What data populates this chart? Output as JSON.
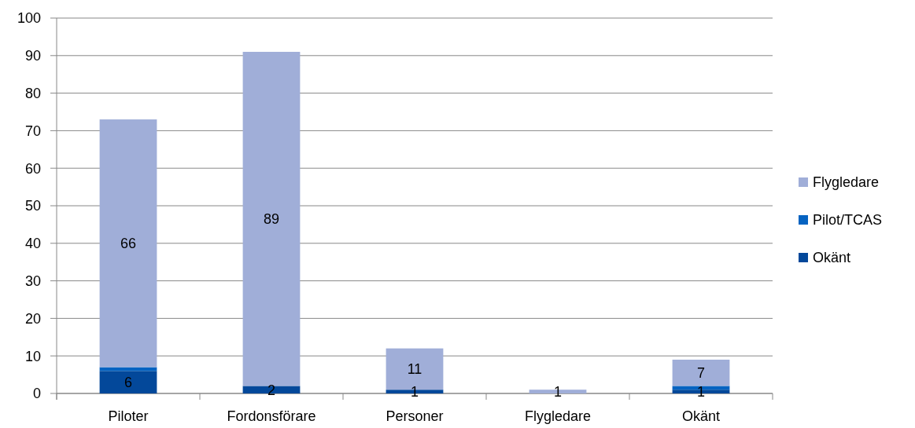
{
  "chart_data": {
    "type": "bar",
    "stacked": true,
    "categories": [
      "Piloter",
      "Fordonsförare",
      "Personer",
      "Flygledare",
      "Okänt"
    ],
    "series": [
      {
        "name": "Okänt",
        "color": "#03489a",
        "values": [
          6,
          2,
          1,
          0,
          1
        ],
        "value_labels": [
          "6",
          "2",
          "1",
          null,
          "1"
        ]
      },
      {
        "name": "Pilot/TCAS",
        "color": "#0563c1",
        "values": [
          1,
          0,
          0,
          0,
          1
        ]
      },
      {
        "name": "Flygledare",
        "color": "#a0aed8",
        "values": [
          66,
          89,
          11,
          1,
          7
        ],
        "value_labels": [
          "66",
          "89",
          "11",
          "1",
          "7"
        ]
      }
    ],
    "ylim": [
      0,
      100
    ],
    "yticks": [
      0,
      10,
      20,
      30,
      40,
      50,
      60,
      70,
      80,
      90,
      100
    ],
    "grid": "y",
    "legend": "right"
  }
}
